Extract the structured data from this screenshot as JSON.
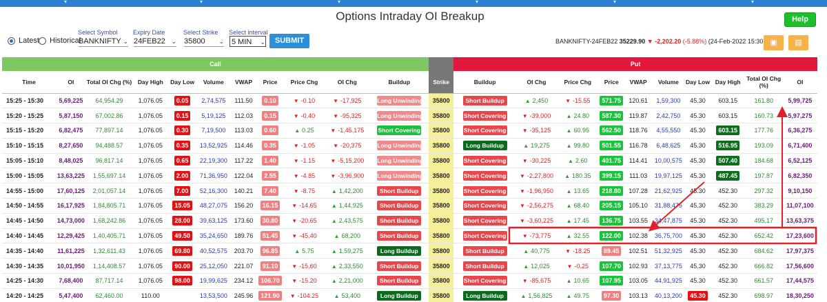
{
  "page_title": "Options Intraday OI Breakup",
  "help_label": "Help",
  "controls": {
    "latest_label": "Latest",
    "historical_label": "Historical",
    "symbol_label": "Select Symbol",
    "symbol_value": "BANKNIFTY",
    "expiry_label": "Expiry Date",
    "expiry_value": "24FEB22",
    "strike_label": "Select Strike",
    "strike_value": "35800",
    "interval_label": "Select interval",
    "interval_value": "5 MIN",
    "submit_label": "SUBMIT"
  },
  "summary": {
    "instrument": "BANKNIFTY-24FEB22",
    "price": "35229.90",
    "change": "-2,202.20",
    "change_pct": "(-5.88%)",
    "datetime": "(24-Feb-2022 15:30 )"
  },
  "groups": {
    "call": "Call",
    "put": "Put"
  },
  "headers": {
    "time": "Time",
    "oi": "OI",
    "total_oi_chg": "Total OI Chg (%)",
    "day_high": "Day High",
    "day_low": "Day Low",
    "volume": "Volume",
    "vwap": "VWAP",
    "price": "Price",
    "price_chg": "Price Chg",
    "oi_chg": "OI Chg",
    "buildup": "Buildup",
    "strike": "Strike"
  },
  "colors": {
    "call_header": "#7ec762",
    "put_header": "#e3163e",
    "strike_col": "#f5ef9a",
    "annotation": "#e0202a"
  },
  "rows": [
    {
      "time": "15:25 - 15:30",
      "c_oi": "5,69,225",
      "c_toi": "64,954.29",
      "c_dh": "1,076.05",
      "c_dl": "0.05",
      "c_dl_s": "red",
      "c_vol": "2,74,575",
      "c_vwap": "111.50",
      "c_price": "0.10",
      "c_price_s": "pink",
      "c_pchg": "-0.10",
      "c_pchg_d": "dn",
      "c_oichg": "-17,925",
      "c_oichg_d": "dn",
      "c_bu": "Long Unwinding",
      "c_bu_s": "lu",
      "strike": "35800",
      "p_bu": "Short Buildup",
      "p_bu_s": "sb",
      "p_oichg": "2,450",
      "p_oichg_d": "up",
      "p_pchg": "-15.55",
      "p_pchg_d": "dn",
      "p_price": "571.75",
      "p_price_s": "grn",
      "p_vwap": "120.61",
      "p_vol": "1,59,300",
      "p_dl": "45.30",
      "p_dl_s": "",
      "p_dh": "603.15",
      "p_dh_s": "",
      "p_toi": "161.80",
      "p_oi": "5,99,725"
    },
    {
      "time": "15:20 - 15:25",
      "c_oi": "5,87,150",
      "c_toi": "67,002.86",
      "c_dh": "1,076.05",
      "c_dl": "0.15",
      "c_dl_s": "red",
      "c_vol": "5,19,125",
      "c_vwap": "112.03",
      "c_price": "0.15",
      "c_price_s": "pink",
      "c_pchg": "-0.40",
      "c_pchg_d": "dn",
      "c_oichg": "-95,325",
      "c_oichg_d": "dn",
      "c_bu": "Long Unwinding",
      "c_bu_s": "lu",
      "strike": "35800",
      "p_bu": "Short Covering",
      "p_bu_s": "sb",
      "p_oichg": "-39,000",
      "p_oichg_d": "dn",
      "p_pchg": "24.80",
      "p_pchg_d": "up",
      "p_price": "587.30",
      "p_price_s": "grn",
      "p_vwap": "119.87",
      "p_vol": "2,42,750",
      "p_dl": "45.30",
      "p_dl_s": "",
      "p_dh": "603.15",
      "p_dh_s": "",
      "p_toi": "160.73",
      "p_oi": "5,97,275"
    },
    {
      "time": "15:15 - 15:20",
      "c_oi": "6,82,475",
      "c_toi": "77,897.14",
      "c_dh": "1,076.05",
      "c_dl": "0.30",
      "c_dl_s": "red",
      "c_vol": "7,19,500",
      "c_vwap": "113.03",
      "c_price": "0.60",
      "c_price_s": "pink",
      "c_pchg": "0.25",
      "c_pchg_d": "up",
      "c_oichg": "-1,45,175",
      "c_oichg_d": "dn",
      "c_bu": "Short Covering",
      "c_bu_s": "sc",
      "strike": "35800",
      "p_bu": "Short Covering",
      "p_bu_s": "sb",
      "p_oichg": "-35,125",
      "p_oichg_d": "dn",
      "p_pchg": "60.95",
      "p_pchg_d": "up",
      "p_price": "562.50",
      "p_price_s": "grn",
      "p_vwap": "118.76",
      "p_vol": "4,55,550",
      "p_dl": "45.30",
      "p_dl_s": "",
      "p_dh": "603.15",
      "p_dh_s": "dk",
      "p_toi": "177.76",
      "p_oi": "6,36,275"
    },
    {
      "time": "15:10 - 15:15",
      "c_oi": "8,27,650",
      "c_toi": "94,488.57",
      "c_dh": "1,076.05",
      "c_dl": "0.35",
      "c_dl_s": "red",
      "c_vol": "13,52,925",
      "c_vwap": "114.46",
      "c_price": "0.35",
      "c_price_s": "pink",
      "c_pchg": "-1.05",
      "c_pchg_d": "dn",
      "c_oichg": "-20,375",
      "c_oichg_d": "dn",
      "c_bu": "Long Unwinding",
      "c_bu_s": "lu",
      "strike": "35800",
      "p_bu": "Long Buildup",
      "p_bu_s": "lb",
      "p_oichg": "19,275",
      "p_oichg_d": "up",
      "p_pchg": "99.80",
      "p_pchg_d": "up",
      "p_price": "501.55",
      "p_price_s": "grn",
      "p_vwap": "116.78",
      "p_vol": "6,48,625",
      "p_dl": "45.30",
      "p_dl_s": "",
      "p_dh": "516.95",
      "p_dh_s": "dk",
      "p_toi": "193.09",
      "p_oi": "6,71,400"
    },
    {
      "time": "15:05 - 15:10",
      "c_oi": "8,48,025",
      "c_toi": "96,817.14",
      "c_dh": "1,076.05",
      "c_dl": "0.65",
      "c_dl_s": "red",
      "c_vol": "22,19,300",
      "c_vwap": "117.22",
      "c_price": "1.40",
      "c_price_s": "pink",
      "c_pchg": "-1.15",
      "c_pchg_d": "dn",
      "c_oichg": "-5,15,200",
      "c_oichg_d": "dn",
      "c_bu": "Long Unwinding",
      "c_bu_s": "lu",
      "strike": "35800",
      "p_bu": "Short Covering",
      "p_bu_s": "sb",
      "p_oichg": "-30,225",
      "p_oichg_d": "dn",
      "p_pchg": "2.60",
      "p_pchg_d": "up",
      "p_price": "401.75",
      "p_price_s": "grn",
      "p_vwap": "114.41",
      "p_vol": "10,00,575",
      "p_dl": "45.30",
      "p_dl_s": "",
      "p_dh": "507.40",
      "p_dh_s": "dk",
      "p_toi": "184.68",
      "p_oi": "6,52,125"
    },
    {
      "time": "15:00 - 15:05",
      "c_oi": "13,63,225",
      "c_toi": "1,55,697.14",
      "c_dh": "1,076.05",
      "c_dl": "2.00",
      "c_dl_s": "red",
      "c_vol": "71,36,950",
      "c_vwap": "122.04",
      "c_price": "2.55",
      "c_price_s": "pink",
      "c_pchg": "-4.85",
      "c_pchg_d": "dn",
      "c_oichg": "-3,96,900",
      "c_oichg_d": "dn",
      "c_bu": "Long Unwinding",
      "c_bu_s": "lu",
      "strike": "35800",
      "p_bu": "Short Covering",
      "p_bu_s": "sb",
      "p_oichg": "-2,27,800",
      "p_oichg_d": "dn",
      "p_pchg": "180.35",
      "p_pchg_d": "up",
      "p_price": "399.15",
      "p_price_s": "grn",
      "p_vwap": "111.03",
      "p_vol": "19,97,125",
      "p_dl": "45.30",
      "p_dl_s": "",
      "p_dh": "487.45",
      "p_dh_s": "dk",
      "p_toi": "197.87",
      "p_oi": "6,82,350"
    },
    {
      "time": "14:55 - 15:00",
      "c_oi": "17,60,125",
      "c_toi": "2,01,057.14",
      "c_dh": "1,076.05",
      "c_dl": "7.00",
      "c_dl_s": "red",
      "c_vol": "52,16,300",
      "c_vwap": "140.21",
      "c_price": "7.40",
      "c_price_s": "pink",
      "c_pchg": "-8.75",
      "c_pchg_d": "dn",
      "c_oichg": "1,42,200",
      "c_oichg_d": "up",
      "c_bu": "Short Buildup",
      "c_bu_s": "sb",
      "strike": "35800",
      "p_bu": "Short Covering",
      "p_bu_s": "sb",
      "p_oichg": "-1,96,950",
      "p_oichg_d": "dn",
      "p_pchg": "13.65",
      "p_pchg_d": "up",
      "p_price": "218.80",
      "p_price_s": "grn",
      "p_vwap": "107.28",
      "p_vol": "21,62,925",
      "p_dl": "45.30",
      "p_dl_s": "",
      "p_dh": "452.30",
      "p_dh_s": "",
      "p_toi": "297.32",
      "p_oi": "9,10,150"
    },
    {
      "time": "14:50 - 14:55",
      "c_oi": "16,17,925",
      "c_toi": "1,84,805.71",
      "c_dh": "1,076.05",
      "c_dl": "15.05",
      "c_dl_s": "red",
      "c_vol": "48,27,075",
      "c_vwap": "156.20",
      "c_price": "16.15",
      "c_price_s": "pink",
      "c_pchg": "-14.65",
      "c_pchg_d": "dn",
      "c_oichg": "1,44,925",
      "c_oichg_d": "up",
      "c_bu": "Short Buildup",
      "c_bu_s": "sb",
      "strike": "35800",
      "p_bu": "Short Covering",
      "p_bu_s": "sb",
      "p_oichg": "-2,56,275",
      "p_oichg_d": "dn",
      "p_pchg": "68.40",
      "p_pchg_d": "up",
      "p_price": "205.15",
      "p_price_s": "grn",
      "p_vwap": "105.10",
      "p_vol": "31,88,475",
      "p_dl": "45.30",
      "p_dl_s": "",
      "p_dh": "452.30",
      "p_dh_s": "",
      "p_toi": "383.29",
      "p_oi": "11,07,100"
    },
    {
      "time": "14:45 - 14:50",
      "c_oi": "14,73,000",
      "c_toi": "1,68,242.86",
      "c_dh": "1,076.05",
      "c_dl": "28.00",
      "c_dl_s": "red",
      "c_vol": "39,63,125",
      "c_vwap": "173.60",
      "c_price": "30.80",
      "c_price_s": "pink",
      "c_pchg": "-20.65",
      "c_pchg_d": "dn",
      "c_oichg": "2,43,575",
      "c_oichg_d": "up",
      "c_bu": "Short Buildup",
      "c_bu_s": "sb",
      "strike": "35800",
      "p_bu": "Short Covering",
      "p_bu_s": "sb",
      "p_oichg": "-3,60,225",
      "p_oichg_d": "dn",
      "p_pchg": "17.45",
      "p_pchg_d": "up",
      "p_price": "136.75",
      "p_price_s": "grn",
      "p_vwap": "103.55",
      "p_vol": "34,47,875",
      "p_dl": "45.30",
      "p_dl_s": "",
      "p_dh": "452.30",
      "p_dh_s": "",
      "p_toi": "495.17",
      "p_oi": "13,63,375"
    },
    {
      "time": "14:40 - 14:45",
      "c_oi": "12,29,425",
      "c_toi": "1,40,405.71",
      "c_dh": "1,076.05",
      "c_dl": "49.50",
      "c_dl_s": "red",
      "c_vol": "35,24,650",
      "c_vwap": "189.76",
      "c_price": "51.45",
      "c_price_s": "pink",
      "c_pchg": "-45.40",
      "c_pchg_d": "dn",
      "c_oichg": "68,200",
      "c_oichg_d": "up",
      "c_bu": "Short Buildup",
      "c_bu_s": "sb",
      "strike": "35800",
      "p_bu": "Short Covering",
      "p_bu_s": "sb",
      "p_oichg": "-73,775",
      "p_oichg_d": "dn",
      "p_pchg": "32.55",
      "p_pchg_d": "up",
      "p_price": "122.00",
      "p_price_s": "grn",
      "p_vwap": "102.38",
      "p_vol": "36,75,700",
      "p_dl": "45.30",
      "p_dl_s": "",
      "p_dh": "452.30",
      "p_dh_s": "",
      "p_toi": "652.42",
      "p_oi": "17,23,600"
    },
    {
      "time": "14:35 - 14:40",
      "c_oi": "11,61,225",
      "c_toi": "1,32,611.43",
      "c_dh": "1,076.05",
      "c_dl": "69.80",
      "c_dl_s": "red",
      "c_vol": "40,52,575",
      "c_vwap": "203.70",
      "c_price": "96.85",
      "c_price_s": "pink",
      "c_pchg": "5.75",
      "c_pchg_d": "up",
      "c_oichg": "1,59,275",
      "c_oichg_d": "up",
      "c_bu": "Long Buildup",
      "c_bu_s": "lb",
      "strike": "35800",
      "p_bu": "Short Buildup",
      "p_bu_s": "sb",
      "p_oichg": "40,775",
      "p_oichg_d": "up",
      "p_pchg": "-18.25",
      "p_pchg_d": "dn",
      "p_price": "89.45",
      "p_price_s": "pink",
      "p_vwap": "102.51",
      "p_vol": "51,32,925",
      "p_dl": "45.30",
      "p_dl_s": "",
      "p_dh": "452.30",
      "p_dh_s": "",
      "p_toi": "684.62",
      "p_oi": "17,97,375"
    },
    {
      "time": "14:30 - 14:35",
      "c_oi": "10,01,950",
      "c_toi": "1,14,408.57",
      "c_dh": "1,076.05",
      "c_dl": "90.00",
      "c_dl_s": "red",
      "c_vol": "25,12,050",
      "c_vwap": "221.07",
      "c_price": "91.10",
      "c_price_s": "pink",
      "c_pchg": "-15.60",
      "c_pchg_d": "dn",
      "c_oichg": "2,33,550",
      "c_oichg_d": "up",
      "c_bu": "Short Buildup",
      "c_bu_s": "sb",
      "strike": "35800",
      "p_bu": "Short Buildup",
      "p_bu_s": "sb",
      "p_oichg": "12,025",
      "p_oichg_d": "up",
      "p_pchg": "-0.25",
      "p_pchg_d": "dn",
      "p_price": "107.70",
      "p_price_s": "grn",
      "p_vwap": "102.93",
      "p_vol": "37,13,775",
      "p_dl": "45.30",
      "p_dl_s": "",
      "p_dh": "452.30",
      "p_dh_s": "",
      "p_toi": "666.82",
      "p_oi": "17,56,600"
    },
    {
      "time": "14:25 - 14:30",
      "c_oi": "7,68,400",
      "c_toi": "87,717.14",
      "c_dh": "1,076.05",
      "c_dl": "98.00",
      "c_dl_s": "red",
      "c_vol": "19,99,625",
      "c_vwap": "234.12",
      "c_price": "106.70",
      "c_price_s": "pink",
      "c_pchg": "-15.20",
      "c_pchg_d": "dn",
      "c_oichg": "2,21,000",
      "c_oichg_d": "up",
      "c_bu": "Short Buildup",
      "c_bu_s": "sb",
      "strike": "35800",
      "p_bu": "Short Covering",
      "p_bu_s": "sb",
      "p_oichg": "-85,675",
      "p_oichg_d": "dn",
      "p_pchg": "10.65",
      "p_pchg_d": "up",
      "p_price": "107.95",
      "p_price_s": "grn",
      "p_vwap": "103.05",
      "p_vol": "44,91,925",
      "p_dl": "45.30",
      "p_dl_s": "",
      "p_dh": "452.30",
      "p_dh_s": "",
      "p_toi": "661.57",
      "p_oi": "17,44,575"
    },
    {
      "time": "14:20 - 14:25",
      "c_oi": "5,47,400",
      "c_toi": "62,460.00",
      "c_dh": "110.00",
      "c_dl": "",
      "c_dl_s": "",
      "c_vol": "13,53,500",
      "c_vwap": "245.96",
      "c_price": "121.90",
      "c_price_s": "pink",
      "c_pchg": "-104.25",
      "c_pchg_d": "dn",
      "c_oichg": "53,400",
      "c_oichg_d": "up",
      "c_bu": "Long Buildup",
      "c_bu_s": "lb",
      "strike": "35800",
      "p_bu": "Long Buildup",
      "p_bu_s": "lb",
      "p_oichg": "1,56,825",
      "p_oichg_d": "up",
      "p_pchg": "49.75",
      "p_pchg_d": "up",
      "p_price": "97.30",
      "p_price_s": "pink",
      "p_vwap": "103.13",
      "p_vol": "40,13,200",
      "p_dl": "45.30",
      "p_dl_s": "red",
      "p_dh": "452.30",
      "p_dh_s": "",
      "p_toi": "698.97",
      "p_oi": "18,30,250"
    }
  ]
}
